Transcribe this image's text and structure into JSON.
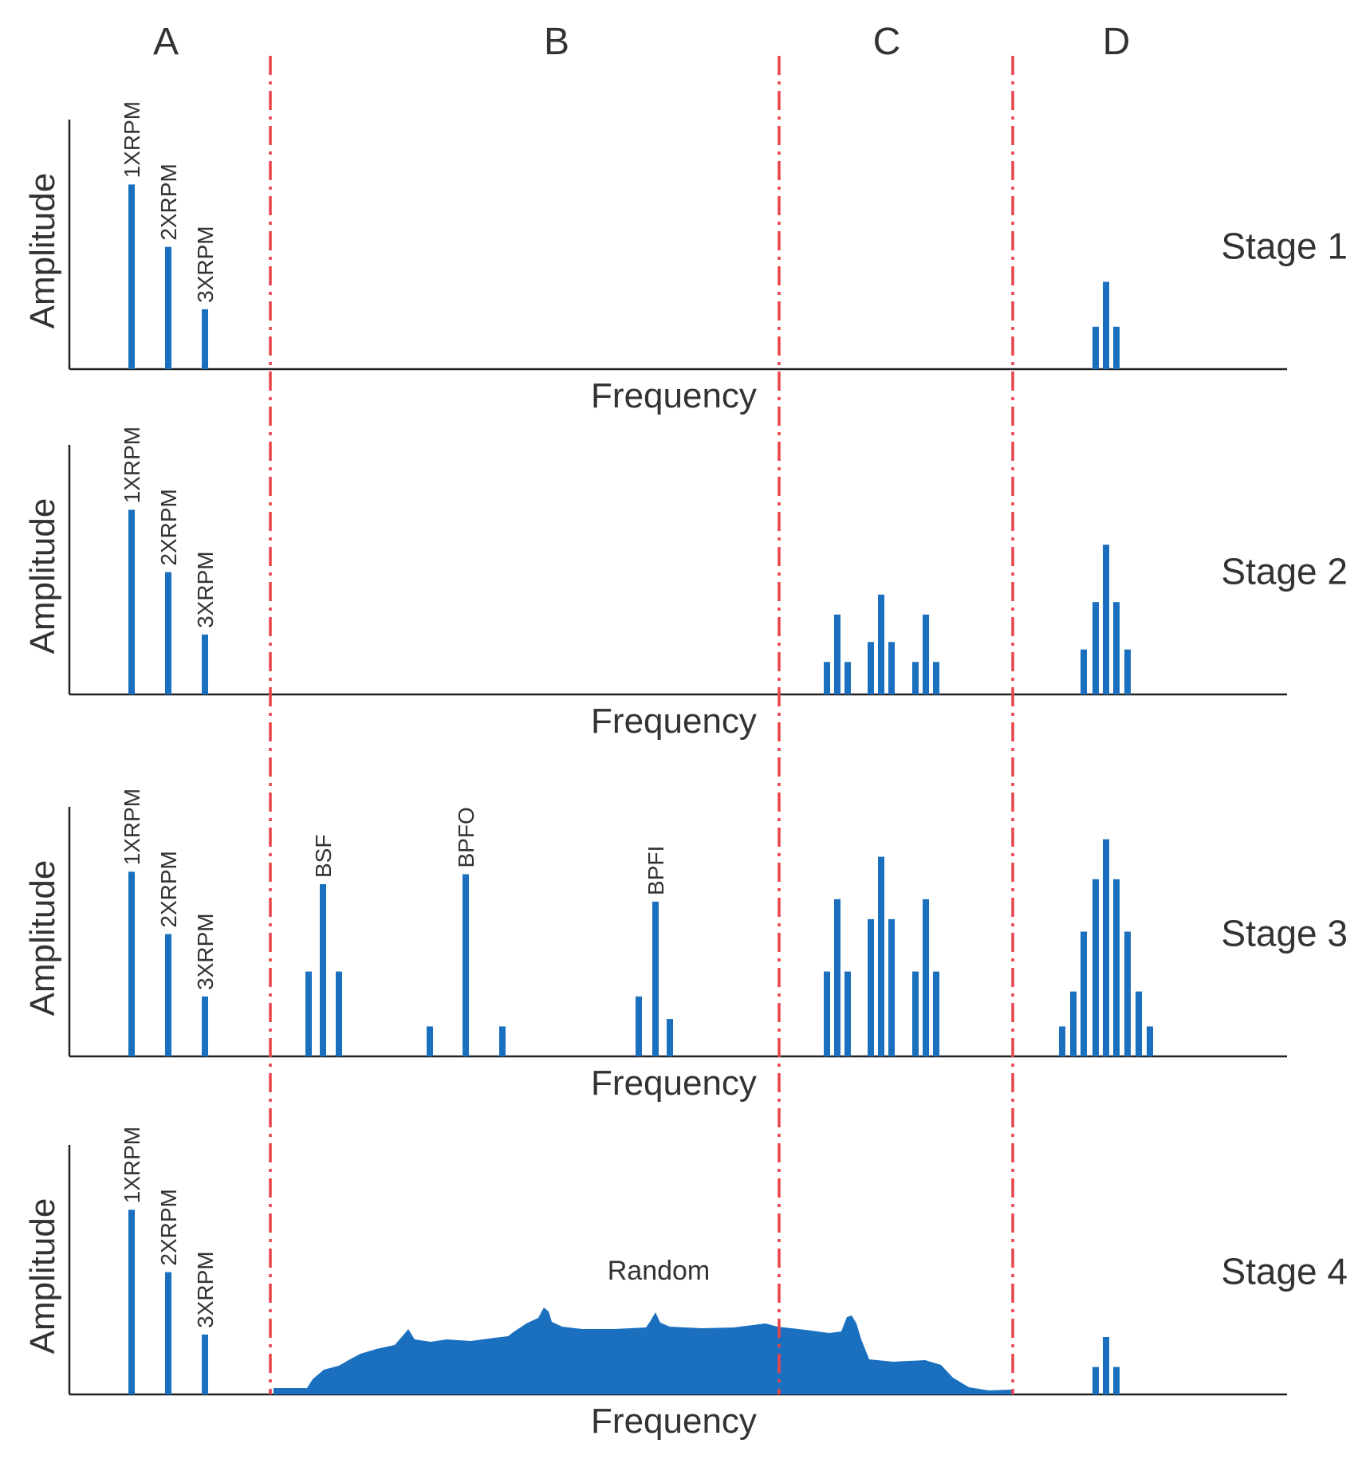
{
  "chart_data": {
    "type": "bar",
    "title": "",
    "xlabel": "Frequency",
    "ylabel": "Amplitude",
    "zones": [
      "A",
      "B",
      "C",
      "D"
    ],
    "harmonic_labels": [
      "1XRPM",
      "2XRPM",
      "3XRPM"
    ],
    "stages": [
      {
        "label": "Stage 1",
        "A": [
          0.74,
          0.49,
          0.24
        ],
        "B": [],
        "C": [],
        "D": [
          0.17,
          0.35,
          0.17
        ],
        "random": false
      },
      {
        "label": "Stage 2",
        "A": [
          0.74,
          0.49,
          0.24
        ],
        "B": [],
        "C": [
          0.13,
          0.32,
          0.13,
          0.21,
          0.4,
          0.21,
          0.13,
          0.32,
          0.13
        ],
        "D": [
          0.18,
          0.37,
          0.6,
          0.37,
          0.18
        ],
        "random": false
      },
      {
        "label": "Stage 3",
        "A": [
          0.74,
          0.49,
          0.24
        ],
        "B": [
          {
            "label": "BSF",
            "values": [
              0.34,
              0.69,
              0.34
            ]
          },
          {
            "label": "BPFO",
            "values": [
              0.12,
              0.73,
              0.12
            ]
          },
          {
            "label": "BPFI",
            "values": [
              0.24,
              0.62,
              0.15
            ]
          }
        ],
        "C": [
          0.34,
          0.63,
          0.34,
          0.55,
          0.8,
          0.55,
          0.34,
          0.63,
          0.34
        ],
        "D": [
          0.12,
          0.26,
          0.5,
          0.71,
          0.87,
          0.71,
          0.5,
          0.26,
          0.12
        ],
        "random": false
      },
      {
        "label": "Stage 4",
        "A": [
          0.74,
          0.49,
          0.24
        ],
        "B": [],
        "C": [],
        "D": [
          0.11,
          0.23,
          0.11
        ],
        "random": true,
        "random_label": "Random"
      }
    ]
  }
}
